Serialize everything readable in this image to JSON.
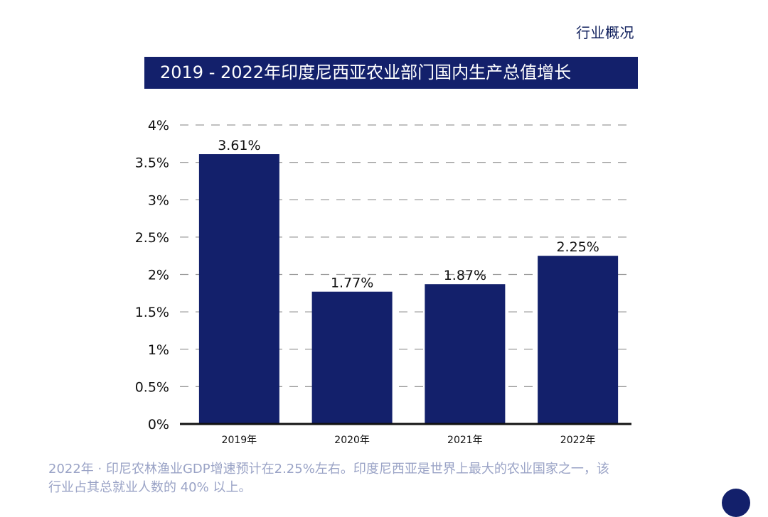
{
  "header": {
    "section_label": "行业概况"
  },
  "chart_data": {
    "type": "bar",
    "title": "2019 - 2022年印度尼西亚农业部门国内生产总值增长",
    "categories": [
      "2019年",
      "2020年",
      "2021年",
      "2022年"
    ],
    "values": [
      3.61,
      1.77,
      1.87,
      2.25
    ],
    "data_labels": [
      "3.61%",
      "1.77%",
      "1.87%",
      "2.25%"
    ],
    "yticks": [
      "0%",
      "0.5%",
      "1%",
      "1.5%",
      "2%",
      "2.5%",
      "3%",
      "3.5%",
      "4%"
    ],
    "ylim": [
      0,
      4
    ],
    "grid": true,
    "bar_color": "#13206b"
  },
  "footnote": {
    "line1": "2022年 · 印尼农林渔业GDP增速预计在2.25%左右。印度尼西亚是世界上最大的农业国家之一，该",
    "line2": " 行业占其总就业人数的 40% 以上。"
  }
}
